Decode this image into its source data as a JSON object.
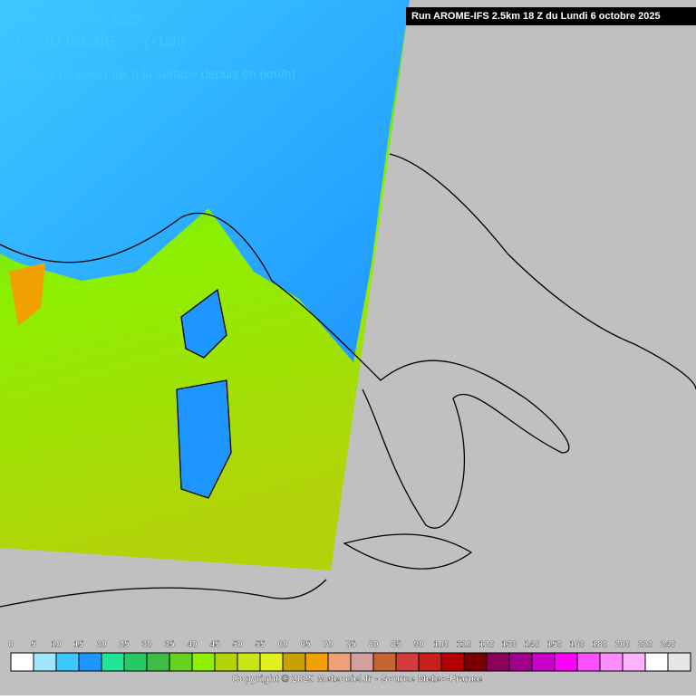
{
  "header": {
    "date": "Mardi 7 octobre 2025",
    "time": "12:00 locale",
    "lead": "(+16h)",
    "parameter": "Rafales de vent max à la surface depuis 0h (km/h)",
    "run": "Run AROME-IFS 2.5km 18 Z du Lundi 6 octobre 2025"
  },
  "legend": {
    "items": [
      {
        "value": 0,
        "color": "#ffffff"
      },
      {
        "value": 5,
        "color": "#a0e6ff"
      },
      {
        "value": 10,
        "color": "#3cc8ff"
      },
      {
        "value": 15,
        "color": "#1e96ff"
      },
      {
        "value": 20,
        "color": "#1ee696"
      },
      {
        "value": 25,
        "color": "#28c864"
      },
      {
        "value": 30,
        "color": "#3cbe46"
      },
      {
        "value": 35,
        "color": "#64d21e"
      },
      {
        "value": 40,
        "color": "#8cf000"
      },
      {
        "value": 45,
        "color": "#b4d20a"
      },
      {
        "value": 50,
        "color": "#c8e614"
      },
      {
        "value": 55,
        "color": "#e1f01e"
      },
      {
        "value": 60,
        "color": "#c8a000"
      },
      {
        "value": 65,
        "color": "#f0a000"
      },
      {
        "value": 70,
        "color": "#f0a078"
      },
      {
        "value": 75,
        "color": "#d2a0a0"
      },
      {
        "value": 80,
        "color": "#c86432"
      },
      {
        "value": 85,
        "color": "#d23c3c"
      },
      {
        "value": 90,
        "color": "#c81e1e"
      },
      {
        "value": 100,
        "color": "#b40000"
      },
      {
        "value": 110,
        "color": "#780000"
      },
      {
        "value": 120,
        "color": "#8c005a"
      },
      {
        "value": 130,
        "color": "#a0008c"
      },
      {
        "value": 140,
        "color": "#c800c8"
      },
      {
        "value": 150,
        "color": "#ff00ff"
      },
      {
        "value": 160,
        "color": "#ff50ff"
      },
      {
        "value": 180,
        "color": "#ff8cff"
      },
      {
        "value": 200,
        "color": "#ffb4ff"
      },
      {
        "value": 220,
        "color": "#ffffff"
      },
      {
        "value": 240,
        "color": "#e6e6e6"
      }
    ]
  },
  "footer": {
    "copyright": "Copyright © 2025 Meteociel.fr - Source Meteo-France"
  }
}
